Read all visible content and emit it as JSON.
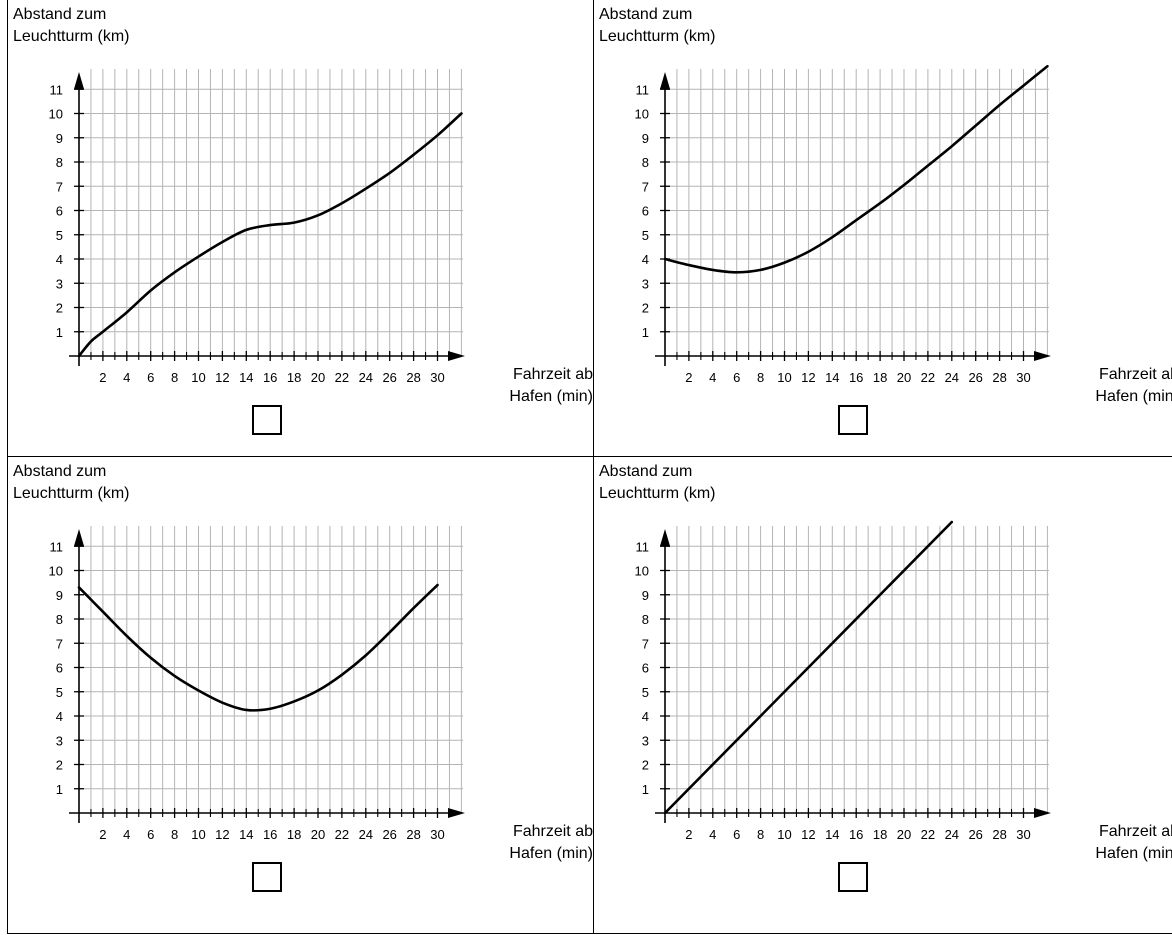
{
  "chart_data": [
    {
      "type": "line",
      "ylabel_line1": "Abstand zum",
      "ylabel_line2": "Leuchtturm (km)",
      "xlabel_line1": "Fahrzeit ab",
      "xlabel_line2": "Hafen (min)",
      "x_ticks": [
        2,
        4,
        6,
        8,
        10,
        12,
        14,
        16,
        18,
        20,
        22,
        24,
        26,
        28,
        30
      ],
      "y_ticks": [
        1,
        2,
        3,
        4,
        5,
        6,
        7,
        8,
        9,
        10,
        11
      ],
      "xlim": [
        0,
        32
      ],
      "ylim": [
        0,
        12
      ],
      "grid": true,
      "x": [
        0,
        1,
        2,
        4,
        6,
        8,
        10,
        12,
        14,
        16,
        18,
        20,
        22,
        24,
        26,
        28,
        30,
        32
      ],
      "y": [
        0,
        0.6,
        1.0,
        1.8,
        2.7,
        3.45,
        4.1,
        4.7,
        5.2,
        5.4,
        5.5,
        5.8,
        6.3,
        6.9,
        7.55,
        8.3,
        9.1,
        10.0
      ]
    },
    {
      "type": "line",
      "ylabel_line1": "Abstand zum",
      "ylabel_line2": "Leuchtturm (km)",
      "xlabel_line1": "Fahrzeit ab",
      "xlabel_line2": "Hafen (min)",
      "x_ticks": [
        2,
        4,
        6,
        8,
        10,
        12,
        14,
        16,
        18,
        20,
        22,
        24,
        26,
        28,
        30
      ],
      "y_ticks": [
        1,
        2,
        3,
        4,
        5,
        6,
        7,
        8,
        9,
        10,
        11
      ],
      "xlim": [
        0,
        32
      ],
      "ylim": [
        0,
        12
      ],
      "grid": true,
      "x": [
        0,
        2,
        4,
        6,
        8,
        10,
        12,
        14,
        16,
        18,
        20,
        22,
        24,
        26,
        28,
        30,
        32
      ],
      "y": [
        4.0,
        3.75,
        3.55,
        3.45,
        3.55,
        3.85,
        4.3,
        4.9,
        5.6,
        6.3,
        7.05,
        7.85,
        8.65,
        9.5,
        10.35,
        11.15,
        11.95
      ]
    },
    {
      "type": "line",
      "ylabel_line1": "Abstand zum",
      "ylabel_line2": "Leuchtturm (km)",
      "xlabel_line1": "Fahrzeit ab",
      "xlabel_line2": "Hafen (min)",
      "x_ticks": [
        2,
        4,
        6,
        8,
        10,
        12,
        14,
        16,
        18,
        20,
        22,
        24,
        26,
        28,
        30
      ],
      "y_ticks": [
        1,
        2,
        3,
        4,
        5,
        6,
        7,
        8,
        9,
        10,
        11
      ],
      "xlim": [
        0,
        32
      ],
      "ylim": [
        0,
        12
      ],
      "grid": true,
      "x": [
        0,
        2,
        4,
        6,
        8,
        10,
        12,
        14,
        16,
        18,
        20,
        22,
        24,
        26,
        28,
        30
      ],
      "y": [
        9.3,
        8.3,
        7.3,
        6.4,
        5.65,
        5.05,
        4.55,
        4.25,
        4.3,
        4.6,
        5.05,
        5.7,
        6.5,
        7.45,
        8.45,
        9.4
      ]
    },
    {
      "type": "line",
      "ylabel_line1": "Abstand zum",
      "ylabel_line2": "Leuchtturm (km)",
      "xlabel_line1": "Fahrzeit ab",
      "xlabel_line2": "Hafen (min)",
      "x_ticks": [
        2,
        4,
        6,
        8,
        10,
        12,
        14,
        16,
        18,
        20,
        22,
        24,
        26,
        28,
        30
      ],
      "y_ticks": [
        1,
        2,
        3,
        4,
        5,
        6,
        7,
        8,
        9,
        10,
        11
      ],
      "xlim": [
        0,
        32
      ],
      "ylim": [
        0,
        12
      ],
      "grid": true,
      "x": [
        0,
        24
      ],
      "y": [
        0,
        12
      ]
    }
  ]
}
